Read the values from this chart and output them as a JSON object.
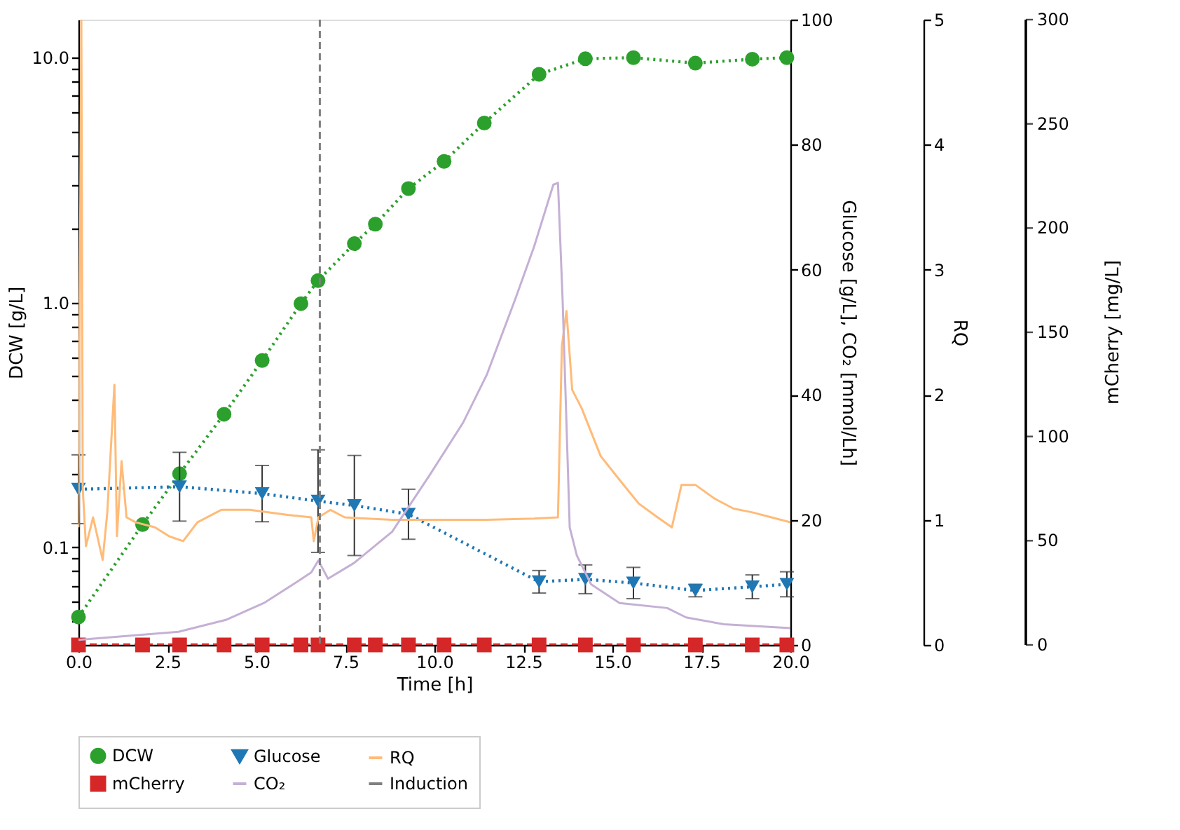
{
  "chart_data": {
    "type": "line",
    "xlabel": "Time [h]",
    "ylabel": "DCW [g/L]",
    "y2label": "Glucose [g/L],  CO₂ [mmol/Lh]",
    "y3label": "RQ",
    "annotations": [
      "0",
      "50",
      "100",
      "150",
      "200",
      "250",
      "300",
      "mCherry [mg/L]"
    ],
    "log": "y",
    "grid": false,
    "legend": "bottom",
    "xlim": [
      0,
      20
    ],
    "xticks": [
      {
        "value": 0,
        "label": "0.0"
      },
      2.5,
      {
        "value": 5,
        "label": "5.0"
      },
      7.5,
      {
        "value": 10,
        "label": "10.0"
      },
      12.5,
      {
        "value": 15,
        "label": "15.0"
      },
      17.5,
      {
        "value": 20,
        "label": "20.0"
      }
    ],
    "ylim": [
      0.04,
      14.3
    ],
    "yticks": [
      {
        "value": 0.04,
        "label": null
      },
      {
        "value": 0.05,
        "label": null
      },
      {
        "value": 0.06,
        "label": null
      },
      {
        "value": 0.07,
        "label": null
      },
      {
        "value": 0.08,
        "label": null
      },
      {
        "value": 0.09,
        "label": null
      },
      0.1,
      {
        "value": 0.2,
        "label": null
      },
      {
        "value": 0.3,
        "label": null
      },
      {
        "value": 0.4,
        "label": null
      },
      {
        "value": 0.5,
        "label": null
      },
      {
        "value": 0.6,
        "label": null
      },
      {
        "value": 0.7,
        "label": null
      },
      {
        "value": 0.8,
        "label": null
      },
      {
        "value": 0.9,
        "label": null
      },
      {
        "value": 1,
        "label": "1.0"
      },
      {
        "value": 2,
        "label": null
      },
      {
        "value": 3,
        "label": null
      },
      {
        "value": 4,
        "label": null
      },
      {
        "value": 5,
        "label": null
      },
      {
        "value": 6,
        "label": null
      },
      {
        "value": 7,
        "label": null
      },
      {
        "value": 8,
        "label": null
      },
      {
        "value": 9,
        "label": null
      },
      {
        "value": 10,
        "label": "10.0"
      }
    ],
    "y2lim": [
      0,
      100
    ],
    "y2ticks": [
      0,
      20,
      40,
      60,
      80,
      100
    ],
    "y3lim": [
      0,
      5
    ],
    "y3ticks": [
      0,
      1,
      2,
      3,
      4,
      5
    ],
    "series": [
      {
        "name": "DCW",
        "color": "#2ca02c",
        "axis": "y",
        "marker": "circle",
        "line_style": "dotted",
        "x": [
          0,
          1.8,
          2.84,
          4.09,
          5.16,
          6.25,
          6.73,
          7.75,
          8.34,
          9.27,
          10.27,
          11.4,
          12.94,
          14.24,
          15.59,
          17.33,
          18.93,
          19.9
        ],
        "values": [
          0.052,
          0.124,
          0.2,
          0.35,
          0.58,
          0.99,
          1.23,
          1.74,
          2.09,
          2.92,
          3.77,
          5.41,
          8.55,
          9.9,
          10.0,
          9.5,
          9.86,
          10.0
        ]
      },
      {
        "name": "Glucose",
        "color": "#1f77b4",
        "axis": "y2",
        "marker": "triangle",
        "line_style": "dotted",
        "x": [
          0,
          2.84,
          5.16,
          6.73,
          7.75,
          9.27,
          12.94,
          14.24,
          15.59,
          17.33,
          18.93,
          19.9
        ],
        "values": [
          24.9,
          25.3,
          24.2,
          23.0,
          22.3,
          20.9,
          10.1,
          10.5,
          9.9,
          8.7,
          9.3,
          9.7
        ],
        "errors": [
          5.5,
          5.5,
          4.5,
          8.2,
          8.0,
          4.0,
          1.8,
          2.3,
          2.5,
          1.0,
          1.9,
          2.0
        ]
      },
      {
        "name": "RQ",
        "color": "#ffbb78",
        "axis": "y3",
        "marker": "none",
        "line_style": "solid",
        "x": [
          0,
          0.08,
          0.12,
          0.21,
          0.41,
          0.68,
          0.81,
          1.01,
          1.08,
          1.21,
          1.35,
          1.61,
          2.15,
          2.54,
          2.94,
          3.34,
          4.01,
          4.81,
          5.88,
          6.54,
          6.61,
          6.74,
          7.08,
          7.48,
          8.81,
          10.14,
          11.47,
          12.8,
          13.47,
          13.58,
          13.71,
          13.87,
          14.14,
          14.67,
          15.2,
          15.74,
          16.27,
          16.67,
          16.94,
          17.33,
          17.87,
          18.4,
          18.93,
          19.47,
          20.0
        ],
        "values": [
          0.94,
          5.0,
          1.25,
          0.79,
          1.02,
          0.68,
          1.06,
          2.08,
          0.87,
          1.47,
          1.02,
          0.98,
          0.94,
          0.87,
          0.83,
          0.98,
          1.08,
          1.08,
          1.04,
          1.02,
          0.83,
          1.02,
          1.08,
          1.02,
          1.0,
          1.0,
          1.0,
          1.01,
          1.02,
          2.39,
          2.67,
          2.04,
          1.89,
          1.51,
          1.32,
          1.13,
          1.02,
          0.94,
          1.28,
          1.28,
          1.17,
          1.09,
          1.06,
          1.02,
          0.98
        ]
      },
      {
        "name": "mCherry",
        "color": "#d62728",
        "axis": "y2",
        "marker": "square",
        "line_style": "dashed",
        "x": [
          0,
          1.8,
          2.84,
          4.09,
          5.16,
          6.25,
          6.73,
          7.75,
          8.34,
          9.27,
          10.27,
          11.4,
          12.94,
          14.24,
          15.59,
          17.33,
          18.93,
          19.9
        ],
        "values": [
          0,
          0,
          0,
          0,
          0,
          0,
          0,
          0,
          0,
          0,
          0,
          0,
          0,
          0,
          0,
          0,
          0,
          0
        ]
      },
      {
        "name": "CO₂",
        "color": "#c5b0d5",
        "axis": "y2",
        "marker": "none",
        "line_style": "solid",
        "x": [
          0,
          2.81,
          4.14,
          5.21,
          6.14,
          6.54,
          6.74,
          7.01,
          7.74,
          8.81,
          9.87,
          10.81,
          11.47,
          12.27,
          12.8,
          13.34,
          13.47,
          13.6,
          13.8,
          14.0,
          14.4,
          15.2,
          16.54,
          17.07,
          18.13,
          20.0
        ],
        "values": [
          0.8,
          2.1,
          4.0,
          6.7,
          10.1,
          11.6,
          13.5,
          10.6,
          13.1,
          18.1,
          27.2,
          35.6,
          43.2,
          55.3,
          63.7,
          73.6,
          73.9,
          55.3,
          18.8,
          14.3,
          9.7,
          6.7,
          5.9,
          4.4,
          3.3,
          2.7
        ]
      }
    ],
    "ref_lines": [
      {
        "axis": "x",
        "value": 6.78,
        "label": "Induction",
        "color": "#7f7f7f",
        "line_style": "dashed"
      }
    ]
  }
}
